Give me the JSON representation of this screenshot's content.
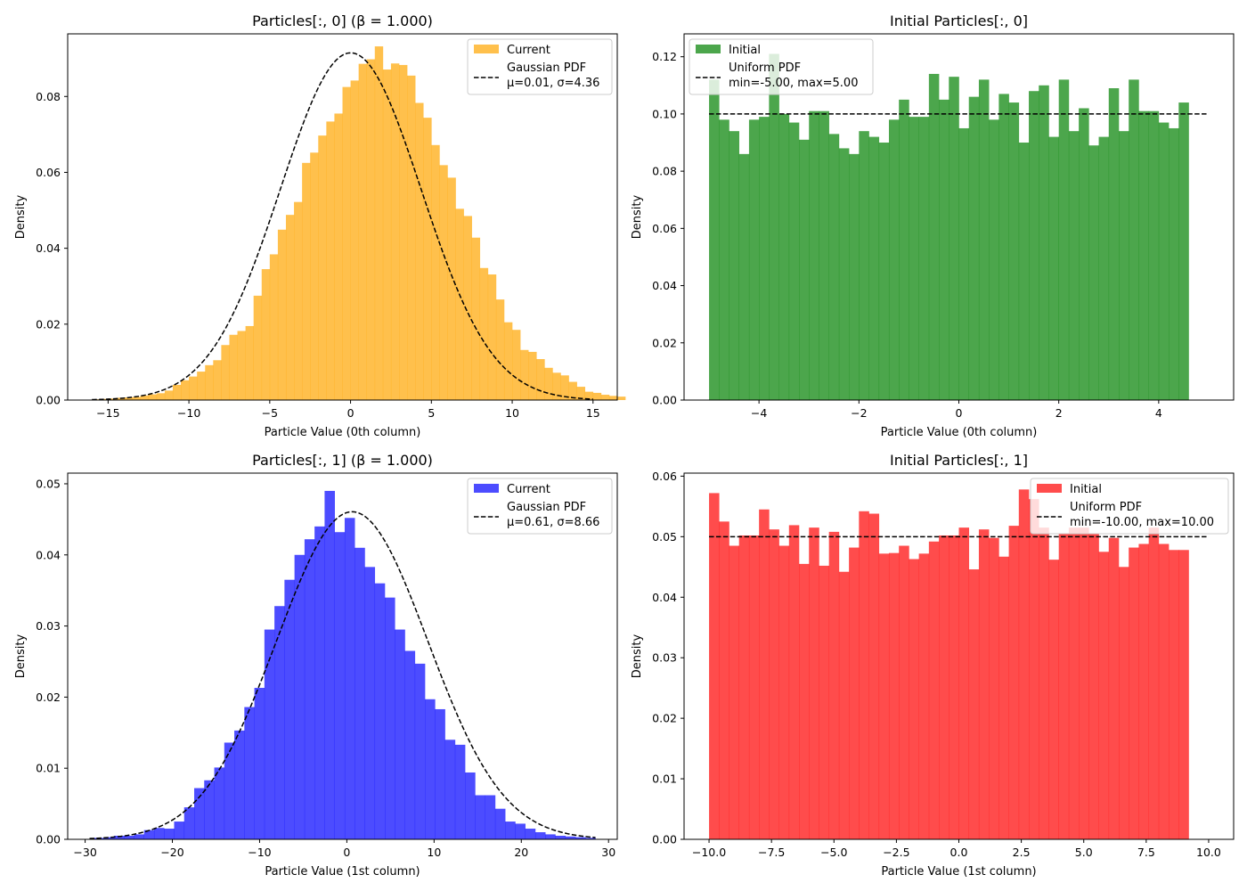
{
  "chart_data": [
    {
      "type": "bar",
      "title": "Particles[:, 0] (β = 1.000)",
      "xlabel": "Particle Value (0th column)",
      "ylabel": "Density",
      "xlim": [
        -17.5,
        16.5
      ],
      "ylim": [
        0,
        0.0965
      ],
      "xticks": [
        -15,
        -10,
        -5,
        0,
        5,
        10,
        15
      ],
      "xtick_labels": [
        "−15",
        "−10",
        "−5",
        "0",
        "5",
        "10",
        "15"
      ],
      "yticks": [
        0.0,
        0.02,
        0.04,
        0.06,
        0.08
      ],
      "ytick_labels": [
        "0.00",
        "0.02",
        "0.04",
        "0.06",
        "0.08"
      ],
      "grid": false,
      "legend_position": "top-right",
      "hist": {
        "name": "Current",
        "color": "#FFA500",
        "opacity": 0.7,
        "bin_start": -16.0,
        "bin_width": 0.5,
        "values": [
          0.0002,
          0.0003,
          0.0004,
          0.0006,
          0.0007,
          0.0008,
          0.0012,
          0.0015,
          0.0018,
          0.0025,
          0.004,
          0.0052,
          0.0062,
          0.0075,
          0.0092,
          0.0105,
          0.0145,
          0.0172,
          0.0182,
          0.0195,
          0.0275,
          0.0345,
          0.0384,
          0.0449,
          0.0488,
          0.0522,
          0.0625,
          0.0652,
          0.0697,
          0.0734,
          0.0755,
          0.0825,
          0.0842,
          0.0886,
          0.0898,
          0.0932,
          0.0871,
          0.0887,
          0.0883,
          0.0855,
          0.0783,
          0.0744,
          0.0672,
          0.0619,
          0.0586,
          0.0504,
          0.0485,
          0.0428,
          0.0348,
          0.0331,
          0.0265,
          0.0205,
          0.0185,
          0.0132,
          0.0127,
          0.0108,
          0.0085,
          0.0072,
          0.0065,
          0.0048,
          0.0035,
          0.0022,
          0.0019,
          0.0014,
          0.0011,
          0.0009,
          0.0006,
          0.0004,
          0.0004,
          0.0003,
          0.0002,
          0.0002,
          0.0001,
          0.0001,
          0.0001,
          0.0001,
          0.0001,
          0.0001,
          0.0001,
          0.0001,
          0.0001,
          0.0001,
          0.0001,
          0.0001,
          0.0001,
          0.0001,
          0.0001,
          0.0001,
          0.0001,
          0.0001,
          0.0001,
          0.0001,
          0.0001,
          0.0001,
          0.0001,
          0.0001,
          0.0001,
          0.0001,
          0.0001,
          0.0001
        ]
      },
      "pdf": {
        "kind": "gaussian",
        "name": "Gaussian PDF",
        "params_label": "μ=0.01, σ=4.36",
        "mu": 0.01,
        "sigma": 4.36,
        "x_range": [
          -16,
          15
        ]
      }
    },
    {
      "type": "bar",
      "title": "Initial Particles[:, 0]",
      "xlabel": "Particle Value (0th column)",
      "ylabel": "Density",
      "xlim": [
        -5.5,
        5.5
      ],
      "ylim": [
        0,
        0.128
      ],
      "xticks": [
        -4,
        -2,
        0,
        2,
        4
      ],
      "xtick_labels": [
        "−4",
        "−2",
        "0",
        "2",
        "4"
      ],
      "yticks": [
        0.0,
        0.02,
        0.04,
        0.06,
        0.08,
        0.1,
        0.12
      ],
      "ytick_labels": [
        "0.00",
        "0.02",
        "0.04",
        "0.06",
        "0.08",
        "0.10",
        "0.12"
      ],
      "grid": false,
      "legend_position": "top-left",
      "hist": {
        "name": "Initial",
        "color": "#008000",
        "opacity": 0.7,
        "bin_start": -5.0,
        "bin_width": 0.2,
        "values": [
          0.112,
          0.098,
          0.094,
          0.086,
          0.098,
          0.099,
          0.121,
          0.1,
          0.097,
          0.091,
          0.101,
          0.101,
          0.093,
          0.088,
          0.086,
          0.094,
          0.092,
          0.09,
          0.098,
          0.105,
          0.099,
          0.099,
          0.114,
          0.105,
          0.113,
          0.095,
          0.106,
          0.112,
          0.098,
          0.107,
          0.104,
          0.09,
          0.108,
          0.11,
          0.092,
          0.112,
          0.094,
          0.102,
          0.089,
          0.092,
          0.109,
          0.094,
          0.112,
          0.101,
          0.101,
          0.097,
          0.095,
          0.104
        ]
      },
      "pdf": {
        "kind": "uniform",
        "name": "Uniform PDF",
        "params_label": "min=-5.00, max=5.00",
        "min": -5.0,
        "max": 5.0,
        "density": 0.1
      }
    },
    {
      "type": "bar",
      "title": "Particles[:, 1] (β = 1.000)",
      "xlabel": "Particle Value (1st column)",
      "ylabel": "Density",
      "xlim": [
        -32,
        31
      ],
      "ylim": [
        0,
        0.0515
      ],
      "xticks": [
        -30,
        -20,
        -10,
        0,
        10,
        20,
        30
      ],
      "xtick_labels": [
        "−30",
        "−20",
        "−10",
        "0",
        "10",
        "20",
        "30"
      ],
      "yticks": [
        0.0,
        0.01,
        0.02,
        0.03,
        0.04,
        0.05
      ],
      "ytick_labels": [
        "0.00",
        "0.01",
        "0.02",
        "0.03",
        "0.04",
        "0.05"
      ],
      "grid": false,
      "legend_position": "top-right",
      "hist": {
        "name": "Current",
        "color": "#0000FF",
        "opacity": 0.7,
        "bin_start": -29.0,
        "bin_width": 1.15,
        "values": [
          0.0002,
          0.0003,
          0.0005,
          0.0005,
          0.0007,
          0.0013,
          0.0016,
          0.0015,
          0.0025,
          0.0045,
          0.0072,
          0.0083,
          0.0101,
          0.0136,
          0.0153,
          0.0186,
          0.0213,
          0.0295,
          0.0328,
          0.0365,
          0.04,
          0.0422,
          0.044,
          0.049,
          0.0432,
          0.0452,
          0.041,
          0.0383,
          0.036,
          0.034,
          0.0295,
          0.0265,
          0.0247,
          0.0197,
          0.0183,
          0.014,
          0.0133,
          0.0094,
          0.0062,
          0.0062,
          0.0043,
          0.0025,
          0.0022,
          0.0015,
          0.001,
          0.0007,
          0.0005,
          0.0004,
          0.0003,
          0.0002
        ]
      },
      "pdf": {
        "kind": "gaussian",
        "name": "Gaussian PDF",
        "params_label": "μ=0.61, σ=8.66",
        "mu": 0.61,
        "sigma": 8.66,
        "x_range": [
          -29.5,
          28.5
        ]
      }
    },
    {
      "type": "bar",
      "title": "Initial Particles[:, 1]",
      "xlabel": "Particle Value (1st column)",
      "ylabel": "Density",
      "xlim": [
        -11,
        11
      ],
      "ylim": [
        0,
        0.0605
      ],
      "xticks": [
        -10.0,
        -7.5,
        -5.0,
        -2.5,
        0.0,
        2.5,
        5.0,
        7.5,
        10.0
      ],
      "xtick_labels": [
        "−10.0",
        "−7.5",
        "−5.0",
        "−2.5",
        "0.0",
        "2.5",
        "5.0",
        "7.5",
        "10.0"
      ],
      "yticks": [
        0.0,
        0.01,
        0.02,
        0.03,
        0.04,
        0.05,
        0.06
      ],
      "ytick_labels": [
        "0.00",
        "0.01",
        "0.02",
        "0.03",
        "0.04",
        "0.05",
        "0.06"
      ],
      "grid": false,
      "legend_position": "top-right",
      "hist": {
        "name": "Initial",
        "color": "#FF0000",
        "opacity": 0.7,
        "bin_start": -10.0,
        "bin_width": 0.4,
        "values": [
          0.0572,
          0.0525,
          0.0485,
          0.0502,
          0.0502,
          0.0545,
          0.0512,
          0.0485,
          0.0519,
          0.0455,
          0.0515,
          0.0452,
          0.0508,
          0.0442,
          0.0482,
          0.0542,
          0.0538,
          0.0472,
          0.0473,
          0.0485,
          0.0463,
          0.0472,
          0.0492,
          0.0502,
          0.0502,
          0.0515,
          0.0446,
          0.0512,
          0.0498,
          0.0467,
          0.0518,
          0.0578,
          0.0562,
          0.0515,
          0.0462,
          0.0505,
          0.0515,
          0.0515,
          0.0505,
          0.0475,
          0.0498,
          0.045,
          0.0482,
          0.0488,
          0.0515,
          0.0488,
          0.0478,
          0.0478
        ]
      },
      "pdf": {
        "kind": "uniform",
        "name": "Uniform PDF",
        "params_label": "min=-10.00, max=10.00",
        "min": -10.0,
        "max": 10.0,
        "density": 0.05
      }
    }
  ]
}
